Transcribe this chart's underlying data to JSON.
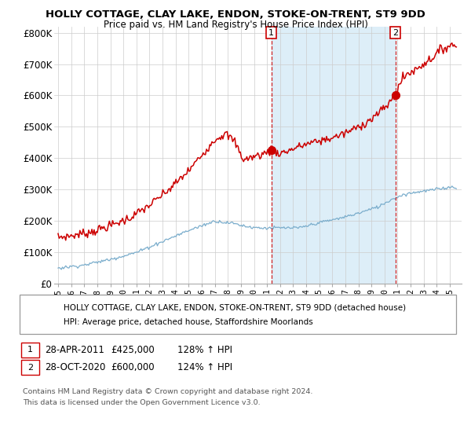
{
  "title": "HOLLY COTTAGE, CLAY LAKE, ENDON, STOKE-ON-TRENT, ST9 9DD",
  "subtitle": "Price paid vs. HM Land Registry's House Price Index (HPI)",
  "red_label": "HOLLY COTTAGE, CLAY LAKE, ENDON, STOKE-ON-TRENT, ST9 9DD (detached house)",
  "blue_label": "HPI: Average price, detached house, Staffordshire Moorlands",
  "ylim": [
    0,
    820000
  ],
  "yticks": [
    0,
    100000,
    200000,
    300000,
    400000,
    500000,
    600000,
    700000,
    800000
  ],
  "ytick_labels": [
    "£0",
    "£100K",
    "£200K",
    "£300K",
    "£400K",
    "£500K",
    "£600K",
    "£700K",
    "£800K"
  ],
  "sale1": {
    "date_str": "28-APR-2011",
    "price": 425000,
    "hpi_pct": "128%",
    "marker_x": 2011.33,
    "dot_y": 425000
  },
  "sale2": {
    "date_str": "28-OCT-2020",
    "price": 600000,
    "hpi_pct": "124%",
    "marker_x": 2020.83,
    "dot_y": 600000
  },
  "footnote1": "Contains HM Land Registry data © Crown copyright and database right 2024.",
  "footnote2": "This data is licensed under the Open Government Licence v3.0.",
  "red_color": "#cc0000",
  "blue_color": "#7aadcc",
  "shade_color": "#ddeef8",
  "background_color": "#ffffff",
  "grid_color": "#cccccc",
  "xlim_left": 1994.7,
  "xlim_right": 2025.9
}
